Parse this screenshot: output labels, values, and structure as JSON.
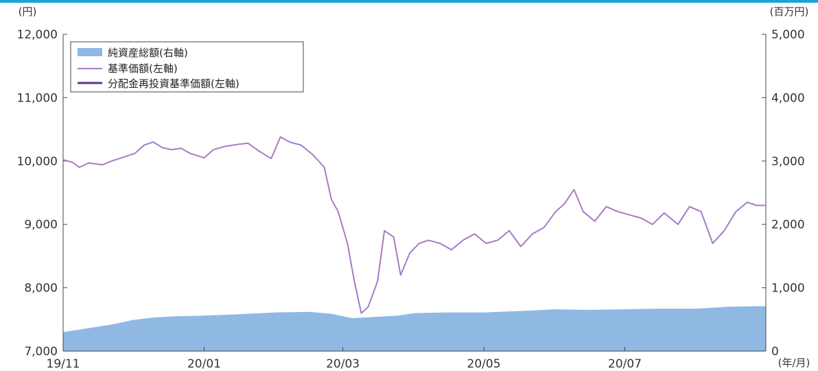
{
  "chart_data": {
    "type": "line",
    "title": "",
    "left_axis": {
      "unit": "(円)",
      "ylim": [
        7000,
        12000
      ],
      "ticks": [
        7000,
        8000,
        9000,
        10000,
        11000,
        12000
      ],
      "tick_labels": [
        "7,000",
        "8,000",
        "9,000",
        "10,000",
        "11,000",
        "12,000"
      ]
    },
    "right_axis": {
      "unit": "(百万円)",
      "ylim": [
        0,
        5000
      ],
      "ticks": [
        0,
        1000,
        2000,
        3000,
        4000,
        5000
      ],
      "tick_labels": [
        "0",
        "1,000",
        "2,000",
        "3,000",
        "4,000",
        "5,000"
      ]
    },
    "x_axis": {
      "unit": "(年/月)",
      "tick_labels": [
        "19/11",
        "20/01",
        "20/03",
        "20/05",
        "20/07"
      ],
      "tick_dates": [
        "2019-11-01",
        "2020-01-01",
        "2020-03-01",
        "2020-05-01",
        "2020-07-01"
      ],
      "range": [
        "2019-11-01",
        "2020-08-31"
      ]
    },
    "legend": {
      "position": "top-left",
      "entries": [
        "純資産総額(右軸)",
        "基準価額(左軸)",
        "分配金再投資基準価額(左軸)"
      ]
    },
    "colors": {
      "area": "#8fb9e3",
      "nav": "#a57bc6",
      "reinvested": "#5a3680",
      "top_bar": "#1ba3d8"
    },
    "series": [
      {
        "name": "純資産総額(右軸)",
        "type": "area",
        "axis": "right",
        "x": [
          "2019-11-01",
          "2019-11-08",
          "2019-11-15",
          "2019-11-22",
          "2019-12-01",
          "2019-12-10",
          "2019-12-20",
          "2020-01-01",
          "2020-01-15",
          "2020-02-01",
          "2020-02-15",
          "2020-02-25",
          "2020-03-05",
          "2020-03-15",
          "2020-03-25",
          "2020-04-01",
          "2020-04-15",
          "2020-05-01",
          "2020-05-15",
          "2020-06-01",
          "2020-06-15",
          "2020-07-01",
          "2020-07-15",
          "2020-08-01",
          "2020-08-15",
          "2020-08-31"
        ],
        "y": [
          300,
          340,
          380,
          420,
          490,
          530,
          550,
          560,
          580,
          610,
          620,
          590,
          520,
          540,
          560,
          600,
          610,
          610,
          630,
          660,
          650,
          660,
          670,
          670,
          700,
          710
        ]
      },
      {
        "name": "基準価額(左軸)",
        "type": "line",
        "axis": "left",
        "x": [
          "2019-11-01",
          "2019-11-05",
          "2019-11-08",
          "2019-11-12",
          "2019-11-18",
          "2019-11-22",
          "2019-11-27",
          "2019-12-02",
          "2019-12-06",
          "2019-12-10",
          "2019-12-14",
          "2019-12-18",
          "2019-12-22",
          "2019-12-26",
          "2020-01-01",
          "2020-01-05",
          "2020-01-10",
          "2020-01-15",
          "2020-01-20",
          "2020-01-25",
          "2020-01-30",
          "2020-02-03",
          "2020-02-07",
          "2020-02-12",
          "2020-02-17",
          "2020-02-22",
          "2020-02-25",
          "2020-02-28",
          "2020-03-03",
          "2020-03-06",
          "2020-03-09",
          "2020-03-12",
          "2020-03-16",
          "2020-03-19",
          "2020-03-23",
          "2020-03-26",
          "2020-03-30",
          "2020-04-03",
          "2020-04-07",
          "2020-04-12",
          "2020-04-17",
          "2020-04-22",
          "2020-04-27",
          "2020-05-02",
          "2020-05-07",
          "2020-05-12",
          "2020-05-17",
          "2020-05-22",
          "2020-05-27",
          "2020-06-01",
          "2020-06-05",
          "2020-06-09",
          "2020-06-13",
          "2020-06-18",
          "2020-06-23",
          "2020-06-28",
          "2020-07-03",
          "2020-07-08",
          "2020-07-13",
          "2020-07-18",
          "2020-07-24",
          "2020-07-29",
          "2020-08-03",
          "2020-08-08",
          "2020-08-13",
          "2020-08-18",
          "2020-08-23",
          "2020-08-27",
          "2020-08-31"
        ],
        "y": [
          10020,
          9980,
          9900,
          9970,
          9940,
          10000,
          10060,
          10120,
          10250,
          10300,
          10210,
          10180,
          10200,
          10120,
          10050,
          10180,
          10230,
          10260,
          10280,
          10150,
          10040,
          10380,
          10300,
          10250,
          10100,
          9900,
          9400,
          9200,
          8700,
          8100,
          7600,
          7700,
          8100,
          8900,
          8800,
          8200,
          8550,
          8700,
          8750,
          8700,
          8600,
          8750,
          8850,
          8700,
          8750,
          8900,
          8650,
          8850,
          8950,
          9200,
          9330,
          9550,
          9200,
          9050,
          9280,
          9200,
          9150,
          9100,
          9000,
          9180,
          9000,
          9280,
          9200,
          8700,
          8900,
          9200,
          9350,
          9300,
          9300
        ]
      },
      {
        "name": "分配金再投資基準価額(左軸)",
        "type": "line",
        "axis": "left",
        "x": [
          "2019-11-01",
          "2019-11-05",
          "2019-11-08",
          "2019-11-12",
          "2019-11-18",
          "2019-11-22",
          "2019-11-27",
          "2019-12-02",
          "2019-12-06",
          "2019-12-10",
          "2019-12-14",
          "2019-12-18",
          "2019-12-22",
          "2019-12-26",
          "2020-01-01",
          "2020-01-05",
          "2020-01-10",
          "2020-01-15",
          "2020-01-20",
          "2020-01-25",
          "2020-01-30",
          "2020-02-03",
          "2020-02-07",
          "2020-02-12",
          "2020-02-17",
          "2020-02-22",
          "2020-02-25",
          "2020-02-28",
          "2020-03-03",
          "2020-03-06",
          "2020-03-09",
          "2020-03-12",
          "2020-03-16",
          "2020-03-19",
          "2020-03-23",
          "2020-03-26",
          "2020-03-30",
          "2020-04-03",
          "2020-04-07",
          "2020-04-12",
          "2020-04-17",
          "2020-04-22",
          "2020-04-27",
          "2020-05-02",
          "2020-05-07",
          "2020-05-12",
          "2020-05-17",
          "2020-05-22",
          "2020-05-27",
          "2020-06-01",
          "2020-06-05",
          "2020-06-09",
          "2020-06-13",
          "2020-06-18",
          "2020-06-23",
          "2020-06-28",
          "2020-07-03",
          "2020-07-08",
          "2020-07-13",
          "2020-07-18",
          "2020-07-24",
          "2020-07-29",
          "2020-08-03",
          "2020-08-08",
          "2020-08-13",
          "2020-08-18",
          "2020-08-23",
          "2020-08-27",
          "2020-08-31"
        ],
        "y": [
          10020,
          9980,
          9900,
          9970,
          9940,
          10000,
          10060,
          10120,
          10250,
          10300,
          10210,
          10180,
          10200,
          10120,
          10050,
          10180,
          10230,
          10260,
          10280,
          10150,
          10040,
          10380,
          10300,
          10250,
          10100,
          9900,
          9400,
          9200,
          8700,
          8100,
          7600,
          7700,
          8100,
          8900,
          8800,
          8200,
          8550,
          8700,
          8750,
          8700,
          8600,
          8750,
          8850,
          8700,
          8750,
          8900,
          8650,
          8850,
          8950,
          9200,
          9330,
          9550,
          9200,
          9050,
          9280,
          9200,
          9150,
          9100,
          9000,
          9180,
          9000,
          9280,
          9200,
          8700,
          8900,
          9200,
          9350,
          9300,
          9300
        ]
      }
    ]
  }
}
